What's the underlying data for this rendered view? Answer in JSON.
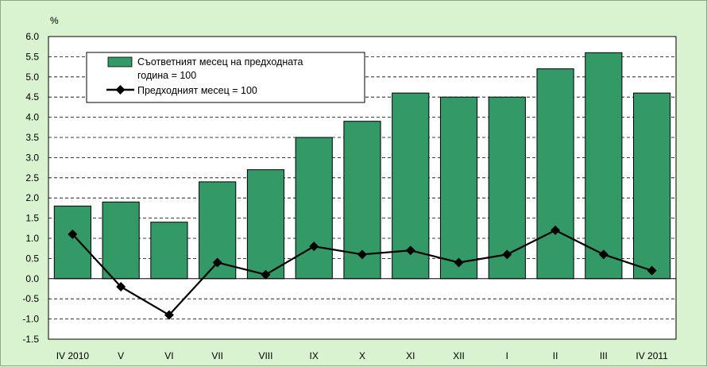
{
  "chart_data": {
    "type": "bar",
    "ylabel": "%",
    "ylim": [
      -1.5,
      6.0
    ],
    "yticks": [
      "6.0",
      "5.5",
      "5.0",
      "4.5",
      "4.0",
      "3.5",
      "3.0",
      "2.5",
      "2.0",
      "1.5",
      "1.0",
      "0.5",
      "0.0",
      "-0.5",
      "-1.0",
      "-1.5"
    ],
    "categories": [
      "IV 2010",
      "V",
      "VI",
      "VII",
      "VIII",
      "IX",
      "X",
      "XI",
      "XII",
      "I",
      "II",
      "III",
      "IV 2011"
    ],
    "grid": true,
    "legend_position": "top-left",
    "series": [
      {
        "name": "Съответният месец на предходната година = 100",
        "legend_lines": [
          "Съответният месец на предходната",
          "година = 100"
        ],
        "type": "bar",
        "color": "#339966",
        "values": [
          1.8,
          1.9,
          1.4,
          2.4,
          2.7,
          3.5,
          3.9,
          4.6,
          4.5,
          4.5,
          5.2,
          5.6,
          4.6
        ]
      },
      {
        "name": "Предходният месец = 100",
        "type": "line",
        "color": "#000000",
        "marker": "diamond",
        "values": [
          1.1,
          -0.2,
          -0.9,
          0.4,
          0.1,
          0.8,
          0.6,
          0.7,
          0.4,
          0.6,
          1.2,
          0.6,
          0.2
        ]
      }
    ]
  }
}
